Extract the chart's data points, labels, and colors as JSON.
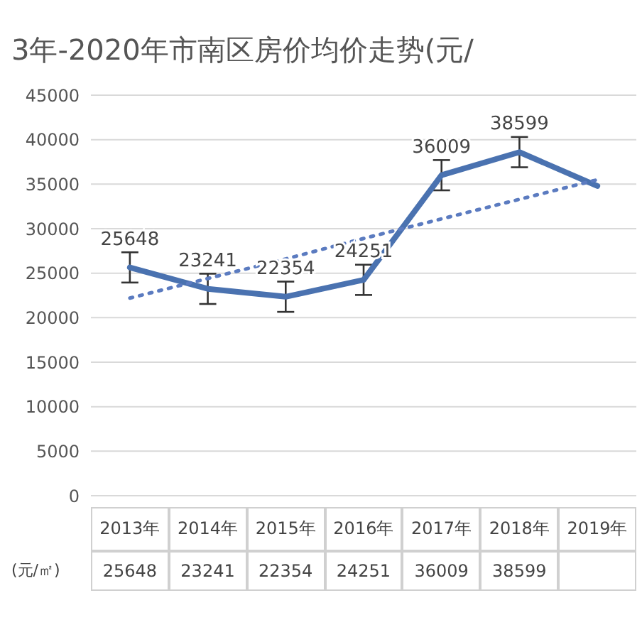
{
  "chart_data": {
    "type": "line",
    "title": "3年-2020年市南区房价均价走势(元/",
    "categories": [
      "2013年",
      "2014年",
      "2015年",
      "2016年",
      "2017年",
      "2018年",
      "2019年"
    ],
    "series": [
      {
        "name": "(元/㎡)",
        "color": "#4a72b0",
        "values": [
          25648,
          23241,
          22354,
          24251,
          36009,
          38599,
          34800
        ],
        "errors": [
          1700,
          1700,
          1700,
          1700,
          1700,
          1700,
          null
        ],
        "value_labels": [
          "25648",
          "23241",
          "22354",
          "24251",
          "36009",
          "38599",
          null
        ]
      },
      {
        "color": "#5b7bc0",
        "line_style": "dotted",
        "values": [
          22200,
          24400,
          26600,
          28900,
          31100,
          33300,
          35500
        ]
      }
    ],
    "ylim": [
      0,
      45000
    ],
    "yticks": [
      0,
      5000,
      10000,
      15000,
      20000,
      25000,
      30000,
      35000,
      40000,
      45000
    ],
    "grid": "y",
    "marker": "none"
  }
}
